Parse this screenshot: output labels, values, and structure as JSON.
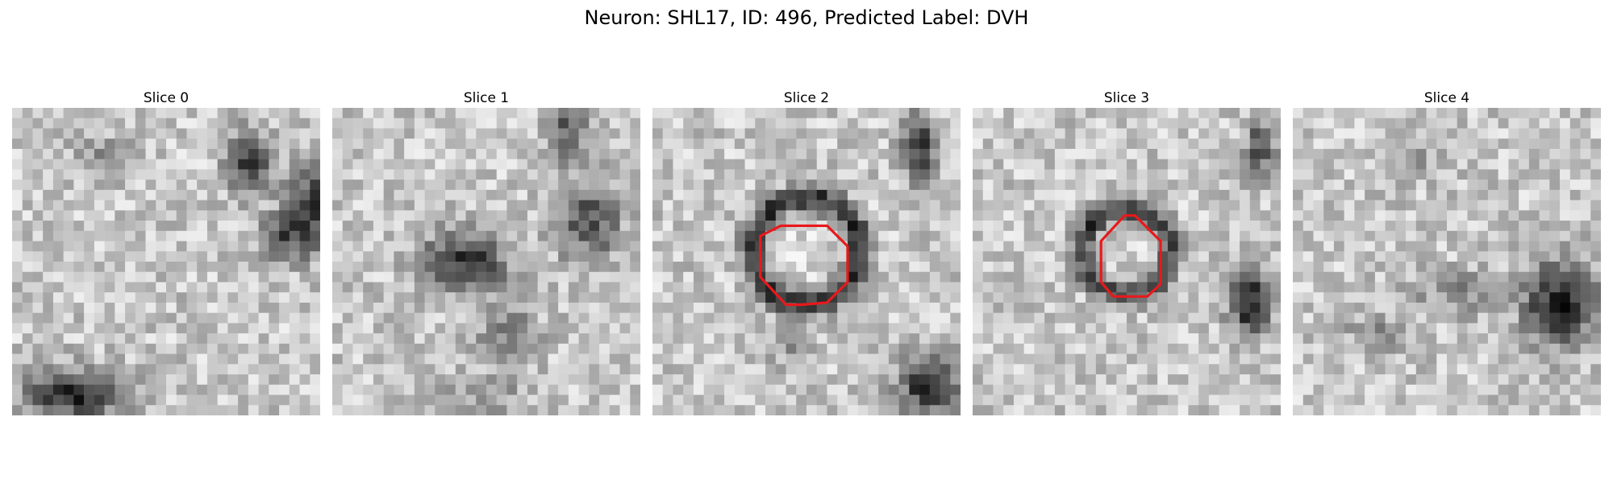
{
  "title": "Neuron: SHL17, ID: 496, Predicted Label: DVH",
  "colors": {
    "background": "#ffffff",
    "outline": "#e8191c",
    "colormap": "grayscale"
  },
  "panels": [
    {
      "title": "Slice 0",
      "has_outline": false
    },
    {
      "title": "Slice 1",
      "has_outline": false
    },
    {
      "title": "Slice 2",
      "has_outline": true
    },
    {
      "title": "Slice 3",
      "has_outline": true
    },
    {
      "title": "Slice 4",
      "has_outline": false
    }
  ]
}
